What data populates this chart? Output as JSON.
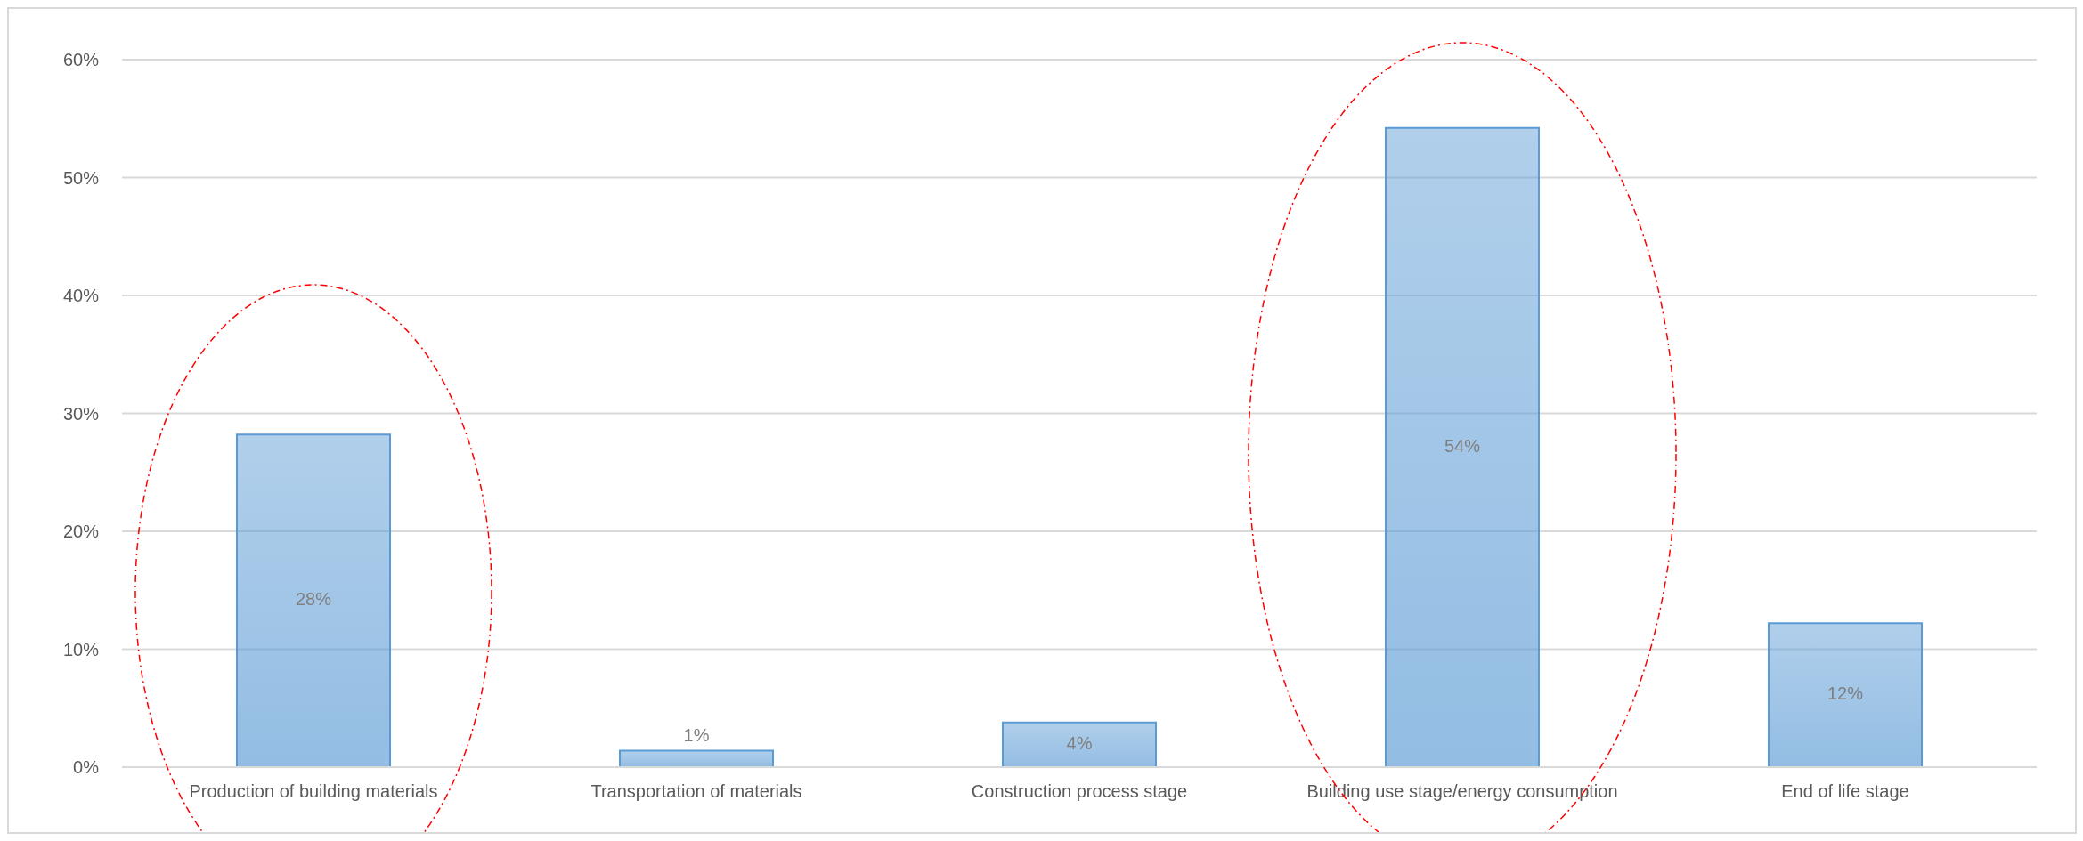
{
  "chart_data": {
    "type": "bar",
    "categories": [
      "Production of building materials",
      "Transportation of materials",
      "Construction process stage",
      "Building use stage/energy consumption",
      "End of life stage"
    ],
    "values": [
      28.2,
      1.4,
      3.8,
      54.2,
      12.2
    ],
    "value_labels": [
      "28%",
      "1%",
      "4%",
      "54%",
      "12%"
    ],
    "color": "#5b9bd5",
    "ylim": [
      0,
      60
    ],
    "yticks": [
      {
        "value": 0,
        "label": "0%"
      },
      {
        "value": 10,
        "label": "10%"
      },
      {
        "value": 20,
        "label": "20%"
      },
      {
        "value": 30,
        "label": "30%"
      },
      {
        "value": 40,
        "label": "40%"
      },
      {
        "value": 50,
        "label": "50%"
      },
      {
        "value": 60,
        "label": "60%"
      }
    ],
    "grid": "y"
  }
}
